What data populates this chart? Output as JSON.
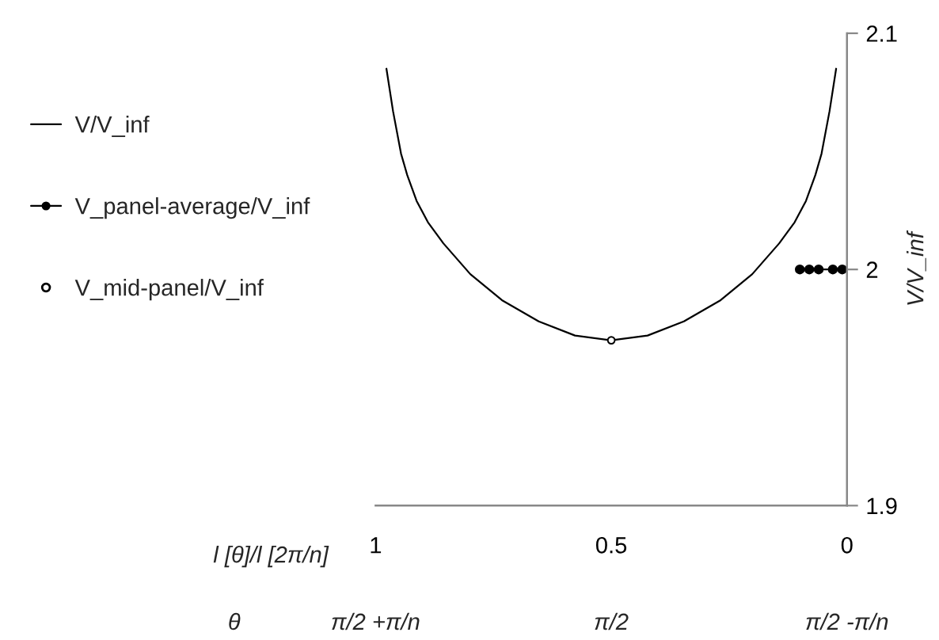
{
  "chart_data": {
    "type": "line",
    "xlabel": "l [θ]/l [2π/n]",
    "ylabel": "V/V_inf",
    "xlim": [
      1,
      0
    ],
    "xticks": [
      1,
      0.5,
      0
    ],
    "ylim": [
      1.9,
      2.1
    ],
    "yticks": [
      1.9,
      2,
      2.1
    ],
    "legend": "left",
    "grid": false,
    "annotations": [
      "θ",
      "π/2 +π/n",
      "π/2",
      "π/2 -π/n"
    ],
    "series": [
      {
        "name": "V/V_inf",
        "color": "#000000",
        "marker": "none",
        "x": [
          0.977,
          0.963,
          0.946,
          0.933,
          0.913,
          0.889,
          0.856,
          0.799,
          0.732,
          0.654,
          0.577,
          0.5,
          0.423,
          0.346,
          0.268,
          0.201,
          0.144,
          0.111,
          0.087,
          0.067,
          0.054,
          0.037,
          0.023
        ],
        "values": [
          2.085,
          2.067,
          2.049,
          2.04,
          2.029,
          2.02,
          2.011,
          1.998,
          1.987,
          1.978,
          1.972,
          1.97,
          1.972,
          1.978,
          1.987,
          1.998,
          2.011,
          2.02,
          2.029,
          2.04,
          2.049,
          2.067,
          2.085
        ]
      },
      {
        "name": "V_panel-average/V_inf",
        "type": "line",
        "color": "#000000",
        "marker": "circle",
        "x": [
          0.1,
          0.08,
          0.06,
          0.03,
          0.01
        ],
        "values": [
          2,
          2,
          2,
          2,
          2
        ]
      },
      {
        "name": "V_mid-panel/V_inf",
        "type": "scatter",
        "color": "#000000",
        "marker": "circle",
        "x": [
          0.5
        ],
        "values": [
          1.97
        ]
      }
    ]
  }
}
